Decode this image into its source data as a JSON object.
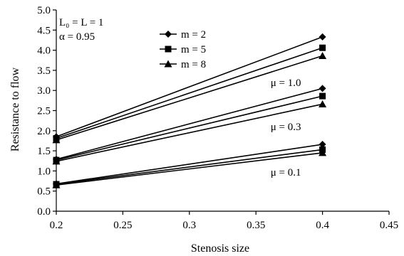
{
  "chart_data": {
    "type": "line",
    "xlabel": "Stenosis size",
    "ylabel": "Resistance to flow",
    "xlim": [
      0.2,
      0.45
    ],
    "ylim": [
      0.0,
      5.0
    ],
    "x_ticks": [
      0.2,
      0.25,
      0.3,
      0.35,
      0.4,
      0.45
    ],
    "x_tick_labels": [
      "0.2",
      "0.25",
      "0.3",
      "0.35",
      "0.4",
      "0.45"
    ],
    "y_ticks": [
      0.0,
      0.5,
      1.0,
      1.5,
      2.0,
      2.5,
      3.0,
      3.5,
      4.0,
      4.5,
      5.0
    ],
    "y_tick_labels": [
      "0.0",
      "0.5",
      "1.0",
      "1.5",
      "2.0",
      "2.5",
      "3.0",
      "3.5",
      "4.0",
      "4.5",
      "5.0"
    ],
    "grid": false,
    "parameters": {
      "line1": "L₀ = L = 1",
      "line2": "α  = 0.95"
    },
    "legend_placement": "top-center",
    "legend": [
      {
        "label": "m = 2",
        "marker": "diamond"
      },
      {
        "label": "m = 5",
        "marker": "square"
      },
      {
        "label": "m = 8",
        "marker": "triangle"
      }
    ],
    "annotations": [
      {
        "text": "μ = 1.0",
        "x": 0.361,
        "y": 3.2
      },
      {
        "text": "μ = 0.3",
        "x": 0.361,
        "y": 2.1
      },
      {
        "text": "μ = 0.1",
        "x": 0.361,
        "y": 0.97
      }
    ],
    "x": [
      0.2,
      0.4
    ],
    "series": [
      {
        "group": "μ = 1.0",
        "marker": "diamond",
        "values": [
          1.85,
          4.33
        ]
      },
      {
        "group": "μ = 1.0",
        "marker": "square",
        "values": [
          1.81,
          4.06
        ]
      },
      {
        "group": "μ = 1.0",
        "marker": "triangle",
        "values": [
          1.77,
          3.86
        ]
      },
      {
        "group": "μ = 0.3",
        "marker": "diamond",
        "values": [
          1.29,
          3.05
        ]
      },
      {
        "group": "μ = 0.3",
        "marker": "square",
        "values": [
          1.27,
          2.86
        ]
      },
      {
        "group": "μ = 0.3",
        "marker": "triangle",
        "values": [
          1.24,
          2.66
        ]
      },
      {
        "group": "μ = 0.1",
        "marker": "diamond",
        "values": [
          0.68,
          1.66
        ]
      },
      {
        "group": "μ = 0.1",
        "marker": "square",
        "values": [
          0.67,
          1.53
        ]
      },
      {
        "group": "μ = 0.1",
        "marker": "triangle",
        "values": [
          0.65,
          1.45
        ]
      }
    ]
  }
}
